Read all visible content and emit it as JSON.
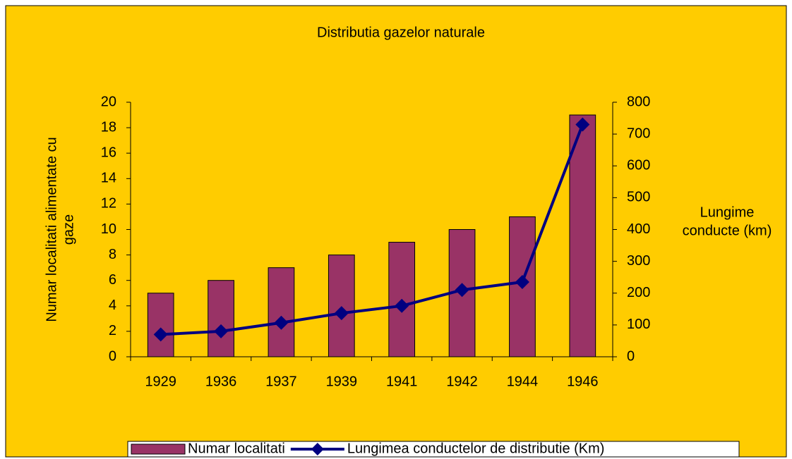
{
  "chart_data": {
    "type": "bar",
    "title": "Distributia gazelor naturale",
    "ylabel": [
      "Numar localitati alimentate cu",
      "gaze"
    ],
    "y2label": [
      "Lungime",
      "conducte (km)"
    ],
    "categories": [
      "1929",
      "1936",
      "1937",
      "1939",
      "1941",
      "1942",
      "1944",
      "1946"
    ],
    "series": [
      {
        "name": "Numar localitati",
        "type": "bar",
        "color": "#993366",
        "values": [
          5,
          6,
          7,
          8,
          9,
          10,
          11,
          19
        ]
      },
      {
        "name": "Lungimea conductelor de distributie (Km)",
        "type": "line",
        "axis": "y2",
        "color": "#000080",
        "values": [
          70,
          80,
          107,
          137,
          160,
          210,
          235,
          730
        ]
      }
    ],
    "ylim": [
      0,
      20
    ],
    "yticks": [
      0,
      2,
      4,
      6,
      8,
      10,
      12,
      14,
      16,
      18,
      20
    ],
    "y2lim": [
      0,
      800
    ],
    "y2ticks": [
      0,
      100,
      200,
      300,
      400,
      500,
      600,
      700,
      800
    ],
    "background": "#ffcc00",
    "legend": "bottom"
  }
}
